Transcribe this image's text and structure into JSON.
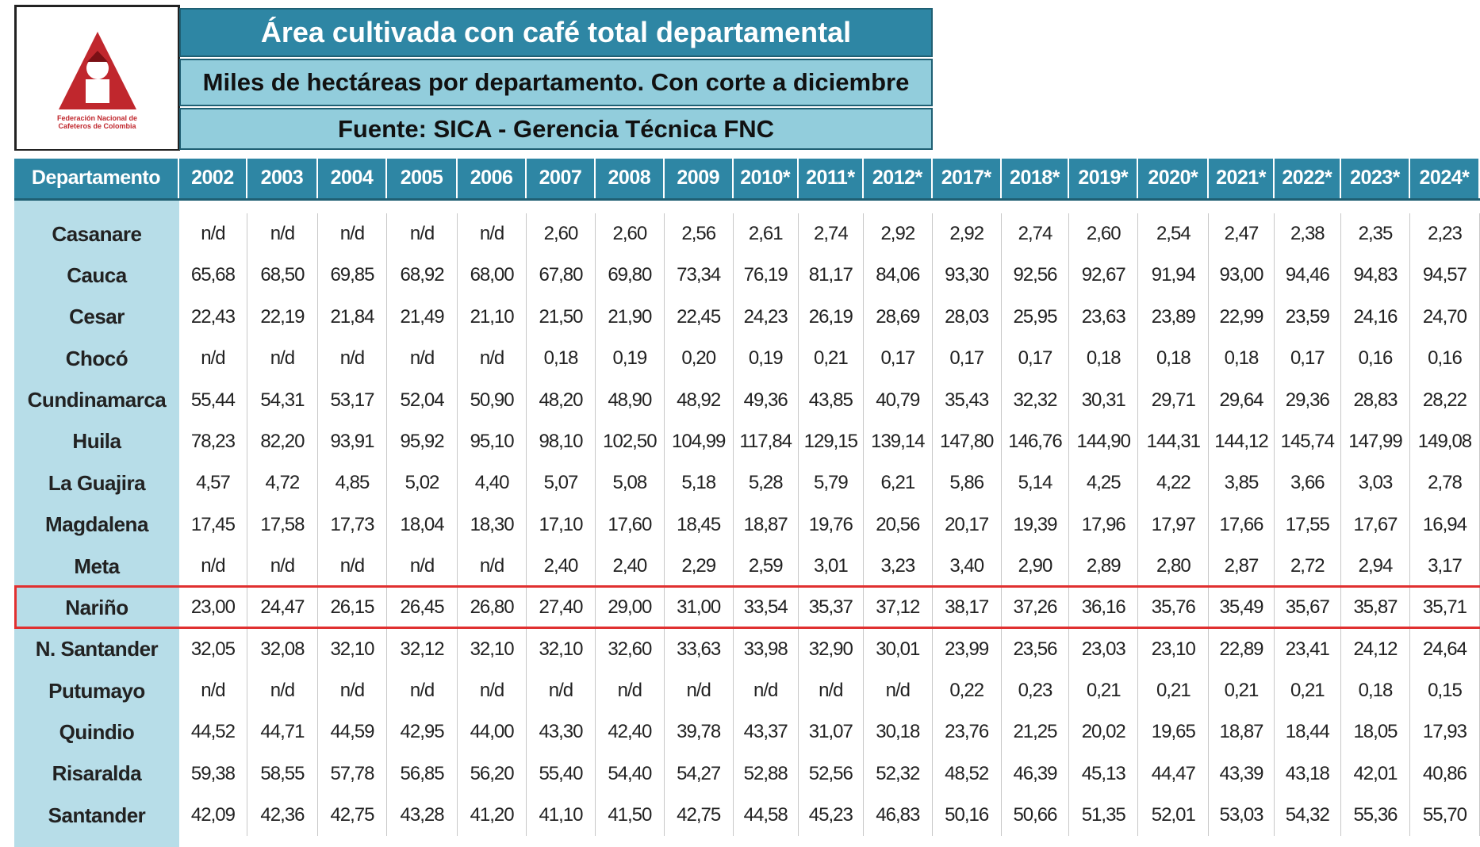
{
  "logo": {
    "lines": [
      "Federación Nacional de",
      "Cafeteros de Colombia"
    ]
  },
  "header": {
    "title": "Área cultivada con café total departamental",
    "subtitle": "Miles de hectáreas por departamento. Con corte a diciembre",
    "source": "Fuente: SICA - Gerencia Técnica FNC"
  },
  "table": {
    "columns": [
      "Departamento",
      "2002",
      "2003",
      "2004",
      "2005",
      "2006",
      "2007",
      "2008",
      "2009",
      "2010*",
      "2011*",
      "2012*",
      "2017*",
      "2018*",
      "2019*",
      "2020*",
      "2021*",
      "2022*",
      "2023*",
      "2024*"
    ],
    "highlight_row": 9,
    "rows": [
      [
        "Casanare",
        "n/d",
        "n/d",
        "n/d",
        "n/d",
        "n/d",
        "2,60",
        "2,60",
        "2,56",
        "2,61",
        "2,74",
        "2,92",
        "2,92",
        "2,74",
        "2,60",
        "2,54",
        "2,47",
        "2,38",
        "2,35",
        "2,23"
      ],
      [
        "Cauca",
        "65,68",
        "68,50",
        "69,85",
        "68,92",
        "68,00",
        "67,80",
        "69,80",
        "73,34",
        "76,19",
        "81,17",
        "84,06",
        "93,30",
        "92,56",
        "92,67",
        "91,94",
        "93,00",
        "94,46",
        "94,83",
        "94,57"
      ],
      [
        "Cesar",
        "22,43",
        "22,19",
        "21,84",
        "21,49",
        "21,10",
        "21,50",
        "21,90",
        "22,45",
        "24,23",
        "26,19",
        "28,69",
        "28,03",
        "25,95",
        "23,63",
        "23,89",
        "22,99",
        "23,59",
        "24,16",
        "24,70"
      ],
      [
        "Chocó",
        "n/d",
        "n/d",
        "n/d",
        "n/d",
        "n/d",
        "0,18",
        "0,19",
        "0,20",
        "0,19",
        "0,21",
        "0,17",
        "0,17",
        "0,17",
        "0,18",
        "0,18",
        "0,18",
        "0,17",
        "0,16",
        "0,16"
      ],
      [
        "Cundinamarca",
        "55,44",
        "54,31",
        "53,17",
        "52,04",
        "50,90",
        "48,20",
        "48,90",
        "48,92",
        "49,36",
        "43,85",
        "40,79",
        "35,43",
        "32,32",
        "30,31",
        "29,71",
        "29,64",
        "29,36",
        "28,83",
        "28,22"
      ],
      [
        "Huila",
        "78,23",
        "82,20",
        "93,91",
        "95,92",
        "95,10",
        "98,10",
        "102,50",
        "104,99",
        "117,84",
        "129,15",
        "139,14",
        "147,80",
        "146,76",
        "144,90",
        "144,31",
        "144,12",
        "145,74",
        "147,99",
        "149,08"
      ],
      [
        "La Guajira",
        "4,57",
        "4,72",
        "4,85",
        "5,02",
        "4,40",
        "5,07",
        "5,08",
        "5,18",
        "5,28",
        "5,79",
        "6,21",
        "5,86",
        "5,14",
        "4,25",
        "4,22",
        "3,85",
        "3,66",
        "3,03",
        "2,78"
      ],
      [
        "Magdalena",
        "17,45",
        "17,58",
        "17,73",
        "18,04",
        "18,30",
        "17,10",
        "17,60",
        "18,45",
        "18,87",
        "19,76",
        "20,56",
        "20,17",
        "19,39",
        "17,96",
        "17,97",
        "17,66",
        "17,55",
        "17,67",
        "16,94"
      ],
      [
        "Meta",
        "n/d",
        "n/d",
        "n/d",
        "n/d",
        "n/d",
        "2,40",
        "2,40",
        "2,29",
        "2,59",
        "3,01",
        "3,23",
        "3,40",
        "2,90",
        "2,89",
        "2,80",
        "2,87",
        "2,72",
        "2,94",
        "3,17"
      ],
      [
        "Nariño",
        "23,00",
        "24,47",
        "26,15",
        "26,45",
        "26,80",
        "27,40",
        "29,00",
        "31,00",
        "33,54",
        "35,37",
        "37,12",
        "38,17",
        "37,26",
        "36,16",
        "35,76",
        "35,49",
        "35,67",
        "35,87",
        "35,71"
      ],
      [
        "N. Santander",
        "32,05",
        "32,08",
        "32,10",
        "32,12",
        "32,10",
        "32,10",
        "32,60",
        "33,63",
        "33,98",
        "32,90",
        "30,01",
        "23,99",
        "23,56",
        "23,03",
        "23,10",
        "22,89",
        "23,41",
        "24,12",
        "24,64"
      ],
      [
        "Putumayo",
        "n/d",
        "n/d",
        "n/d",
        "n/d",
        "n/d",
        "n/d",
        "n/d",
        "n/d",
        "n/d",
        "n/d",
        "n/d",
        "0,22",
        "0,23",
        "0,21",
        "0,21",
        "0,21",
        "0,21",
        "0,18",
        "0,15"
      ],
      [
        "Quindio",
        "44,52",
        "44,71",
        "44,59",
        "42,95",
        "44,00",
        "43,30",
        "42,40",
        "39,78",
        "43,37",
        "31,07",
        "30,18",
        "23,76",
        "21,25",
        "20,02",
        "19,65",
        "18,87",
        "18,44",
        "18,05",
        "17,93"
      ],
      [
        "Risaralda",
        "59,38",
        "58,55",
        "57,78",
        "56,85",
        "56,20",
        "55,40",
        "54,40",
        "54,27",
        "52,88",
        "52,56",
        "52,32",
        "48,52",
        "46,39",
        "45,13",
        "44,47",
        "43,39",
        "43,18",
        "42,01",
        "40,86"
      ],
      [
        "Santander",
        "42,09",
        "42,36",
        "42,75",
        "43,28",
        "41,20",
        "41,10",
        "41,50",
        "42,75",
        "44,58",
        "45,23",
        "46,83",
        "50,16",
        "50,66",
        "51,35",
        "52,01",
        "53,03",
        "54,32",
        "55,36",
        "55,70"
      ]
    ]
  }
}
